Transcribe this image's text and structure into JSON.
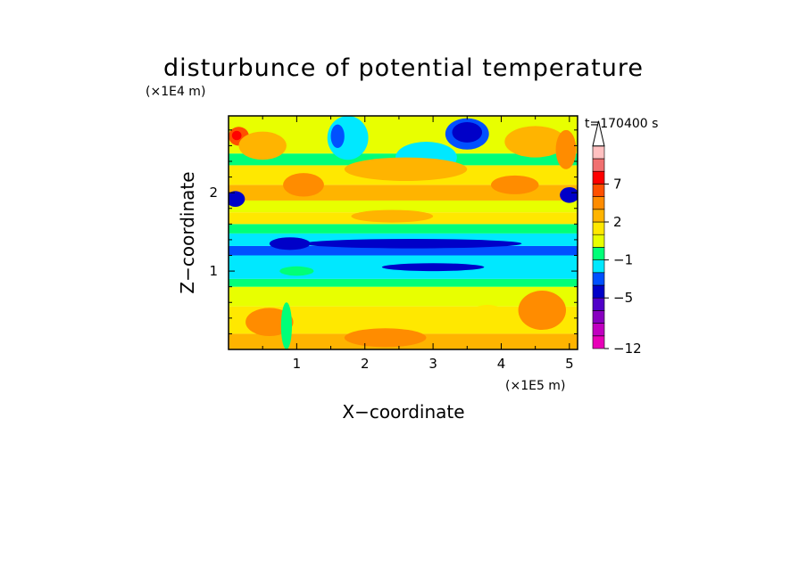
{
  "chart_data": {
    "type": "heatmap",
    "title": "disturbunce of potential temperature",
    "xlabel": "X−coordinate",
    "ylabel": "Z−coordinate",
    "x_unit": "(×1E5 m)",
    "y_unit": "(×1E4 m)",
    "time_label": "t=170400 s",
    "xlim": [
      0,
      5.12
    ],
    "ylim": [
      0,
      2.98
    ],
    "xticks": [
      1,
      2,
      3,
      4,
      5
    ],
    "yticks": [
      1,
      2
    ],
    "xtick_labels": [
      "1",
      "2",
      "3",
      "4",
      "5"
    ],
    "ytick_labels": [
      "1",
      "2"
    ],
    "colorbar": {
      "colors": [
        "#e800b8",
        "#c000c0",
        "#8800c0",
        "#5000c8",
        "#0000c8",
        "#0050ff",
        "#00e8ff",
        "#00ff78",
        "#e8ff00",
        "#ffe800",
        "#ffb400",
        "#ff8c00",
        "#ff5000",
        "#ff0000",
        "#f07070",
        "#ffc0c0"
      ],
      "tick_labels": [
        "−12",
        "−5",
        "−1",
        "2",
        "7"
      ],
      "tick_levels": [
        0,
        4,
        7,
        10,
        13
      ]
    },
    "bands": [
      {
        "z": [
          0.0,
          0.2
        ],
        "level": 10
      },
      {
        "z": [
          0.2,
          0.55
        ],
        "level": 9
      },
      {
        "z": [
          0.55,
          0.8
        ],
        "level": 8
      },
      {
        "z": [
          0.8,
          0.9
        ],
        "level": 7
      },
      {
        "z": [
          0.9,
          1.2
        ],
        "level": 6
      },
      {
        "z": [
          1.2,
          1.32
        ],
        "level": 5
      },
      {
        "z": [
          1.32,
          1.48
        ],
        "level": 6
      },
      {
        "z": [
          1.48,
          1.6
        ],
        "level": 7
      },
      {
        "z": [
          1.6,
          1.75
        ],
        "level": 9
      },
      {
        "z": [
          1.75,
          1.9
        ],
        "level": 8
      },
      {
        "z": [
          1.9,
          2.1
        ],
        "level": 10
      },
      {
        "z": [
          2.1,
          2.35
        ],
        "level": 9
      },
      {
        "z": [
          2.35,
          2.5
        ],
        "level": 7
      },
      {
        "z": [
          2.5,
          2.98
        ],
        "level": 8
      }
    ],
    "features": [
      {
        "x": 0.15,
        "z": 2.72,
        "rx": 0.15,
        "rz": 0.12,
        "level": 12
      },
      {
        "x": 0.12,
        "z": 2.73,
        "rx": 0.07,
        "rz": 0.06,
        "level": 13
      },
      {
        "x": 0.1,
        "z": 1.92,
        "rx": 0.14,
        "rz": 0.1,
        "level": 4
      },
      {
        "x": 5.0,
        "z": 1.97,
        "rx": 0.14,
        "rz": 0.1,
        "level": 4
      },
      {
        "x": 3.5,
        "z": 2.75,
        "rx": 0.32,
        "rz": 0.2,
        "level": 5
      },
      {
        "x": 3.5,
        "z": 2.77,
        "rx": 0.22,
        "rz": 0.13,
        "level": 4
      },
      {
        "x": 1.75,
        "z": 2.7,
        "rx": 0.3,
        "rz": 0.28,
        "level": 6
      },
      {
        "x": 1.6,
        "z": 2.72,
        "rx": 0.1,
        "rz": 0.15,
        "level": 5
      },
      {
        "x": 2.9,
        "z": 2.45,
        "rx": 0.45,
        "rz": 0.2,
        "level": 6
      },
      {
        "x": 2.6,
        "z": 2.3,
        "rx": 0.9,
        "rz": 0.15,
        "level": 10
      },
      {
        "x": 0.5,
        "z": 2.6,
        "rx": 0.35,
        "rz": 0.18,
        "level": 10
      },
      {
        "x": 4.5,
        "z": 2.65,
        "rx": 0.45,
        "rz": 0.2,
        "level": 10
      },
      {
        "x": 4.95,
        "z": 2.55,
        "rx": 0.15,
        "rz": 0.25,
        "level": 11
      },
      {
        "x": 2.7,
        "z": 1.35,
        "rx": 1.6,
        "rz": 0.06,
        "level": 4
      },
      {
        "x": 3.0,
        "z": 1.05,
        "rx": 0.75,
        "rz": 0.05,
        "level": 4
      },
      {
        "x": 0.9,
        "z": 1.35,
        "rx": 0.3,
        "rz": 0.08,
        "level": 4
      },
      {
        "x": 1.0,
        "z": 1.0,
        "rx": 0.25,
        "rz": 0.06,
        "level": 7
      },
      {
        "x": 0.6,
        "z": 0.35,
        "rx": 0.35,
        "rz": 0.18,
        "level": 11
      },
      {
        "x": 4.6,
        "z": 0.5,
        "rx": 0.35,
        "rz": 0.25,
        "level": 11
      },
      {
        "x": 2.3,
        "z": 0.15,
        "rx": 0.6,
        "rz": 0.12,
        "level": 11
      },
      {
        "x": 3.8,
        "z": 0.45,
        "rx": 0.25,
        "rz": 0.12,
        "level": 9
      },
      {
        "x": 0.85,
        "z": 0.3,
        "rx": 0.08,
        "rz": 0.3,
        "level": 7
      },
      {
        "x": 4.2,
        "z": 2.1,
        "rx": 0.35,
        "rz": 0.12,
        "level": 11
      },
      {
        "x": 1.1,
        "z": 2.1,
        "rx": 0.3,
        "rz": 0.15,
        "level": 11
      },
      {
        "x": 2.4,
        "z": 1.7,
        "rx": 0.6,
        "rz": 0.08,
        "level": 10
      }
    ]
  }
}
